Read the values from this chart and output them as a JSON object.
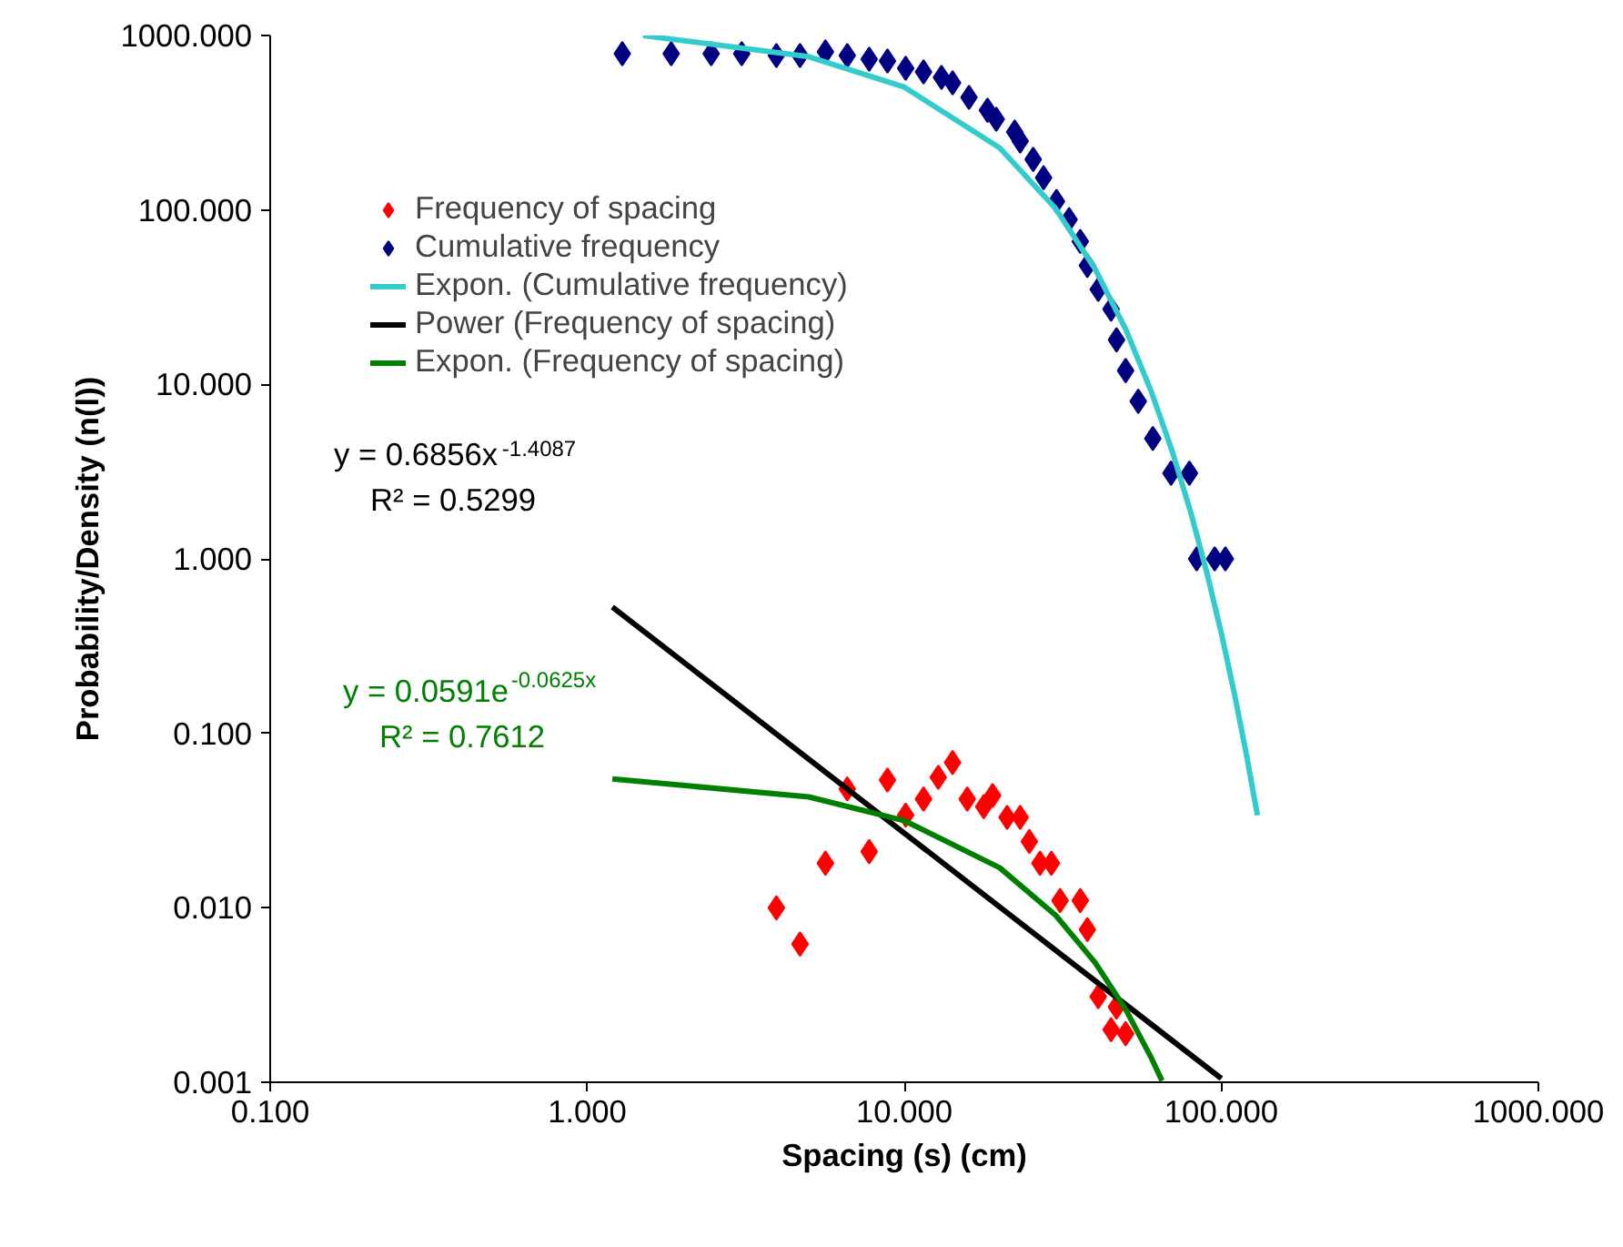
{
  "chart_data": {
    "type": "scatter",
    "xlabel": "Spacing (s) (cm)",
    "ylabel": "Probability/Density (n(l))",
    "log": "xy",
    "grid": false,
    "legend": "top left",
    "line_style": "solid",
    "xlim": [
      0.1,
      1000
    ],
    "ylim": [
      0.001,
      1000
    ],
    "xticks": [
      {
        "value": 0.1,
        "label": "0.100"
      },
      {
        "value": 1,
        "label": "1.000"
      },
      {
        "value": 10,
        "label": "10.000"
      },
      {
        "value": 100,
        "label": "100.000"
      },
      {
        "value": 1000,
        "label": "1000.000"
      }
    ],
    "yticks": [
      {
        "value": 0.001,
        "label": "0.001"
      },
      {
        "value": 0.01,
        "label": "0.010"
      },
      {
        "value": 0.1,
        "label": "0.100"
      },
      {
        "value": 1,
        "label": "1.000"
      },
      {
        "value": 10,
        "label": "10.000"
      },
      {
        "value": 100,
        "label": "100.000"
      },
      {
        "value": 1000,
        "label": "1000.000"
      }
    ],
    "annotations": [
      "y = 0.6856x$^{-1.4087}$",
      "R² = 0.5299",
      "y = 0.0591e$^{-0.0625x}$",
      "R² = 0.7612"
    ],
    "series": [
      {
        "name": "Frequency of spacing",
        "marker": "diamond",
        "color": "#ff0000",
        "x": [
          3.95,
          4.69,
          5.64,
          7.75,
          6.61,
          8.85,
          10.1,
          11.5,
          12.8,
          14.2,
          15.8,
          17.8,
          19.0,
          21.1,
          23.2,
          24.8,
          26.8,
          29.1,
          31.0,
          35.9,
          37.8,
          40.9,
          46.7,
          44.9,
          49.9
        ],
        "values": [
          0.01,
          0.0062,
          0.018,
          0.021,
          0.048,
          0.054,
          0.034,
          0.042,
          0.056,
          0.068,
          0.042,
          0.038,
          0.044,
          0.033,
          0.033,
          0.024,
          0.018,
          0.018,
          0.011,
          0.011,
          0.0075,
          0.0031,
          0.0027,
          0.002,
          0.0019
        ]
      },
      {
        "name": "Cumulative frequency",
        "marker": "diamond",
        "color": "#000080",
        "x": [
          1.29,
          1.84,
          2.46,
          3.07,
          3.95,
          4.69,
          5.64,
          6.61,
          7.75,
          8.85,
          10.1,
          11.5,
          13.1,
          14.2,
          16.0,
          18.3,
          19.5,
          22.3,
          23.2,
          25.5,
          27.5,
          30.2,
          33.1,
          35.9,
          37.8,
          40.9,
          44.9,
          46.7,
          49.9,
          54.7,
          60.8,
          69.4,
          79.3,
          83.6,
          95.3,
          103
        ],
        "values": [
          787,
          787,
          787,
          787,
          768,
          768,
          806,
          768,
          732,
          714,
          649,
          618,
          575,
          535,
          442,
          373,
          331,
          280,
          248,
          195,
          153,
          112,
          88,
          66,
          48,
          35,
          27,
          18,
          12,
          8.0,
          4.9,
          3.1,
          3.1,
          1.0,
          1.0,
          1.0
        ]
      },
      {
        "name": "Expon. (Cumulative frequency)",
        "type": "line",
        "color": "#33cccc",
        "x": [
          1.5,
          5,
          10,
          20,
          30,
          40,
          50,
          60,
          70,
          80,
          90,
          100,
          110,
          120,
          130
        ],
        "values": [
          1000,
          756,
          506,
          227,
          102,
          45.8,
          20.6,
          9.2,
          4.14,
          1.86,
          0.835,
          0.375,
          0.168,
          0.0754,
          0.0339
        ]
      },
      {
        "name": "Power (Frequency of spacing)",
        "type": "line",
        "color": "#000000",
        "x": [
          1.2,
          10,
          100
        ],
        "values": [
          0.53,
          0.0268,
          0.00105
        ]
      },
      {
        "name": "Expon. (Frequency of spacing)",
        "type": "line",
        "color": "#008000",
        "x": [
          1.2,
          5,
          10,
          20,
          30,
          40,
          50,
          60,
          65
        ],
        "values": [
          0.0548,
          0.0432,
          0.0316,
          0.01696,
          0.00907,
          0.00485,
          0.0026,
          0.00139,
          0.00102
        ]
      }
    ]
  }
}
